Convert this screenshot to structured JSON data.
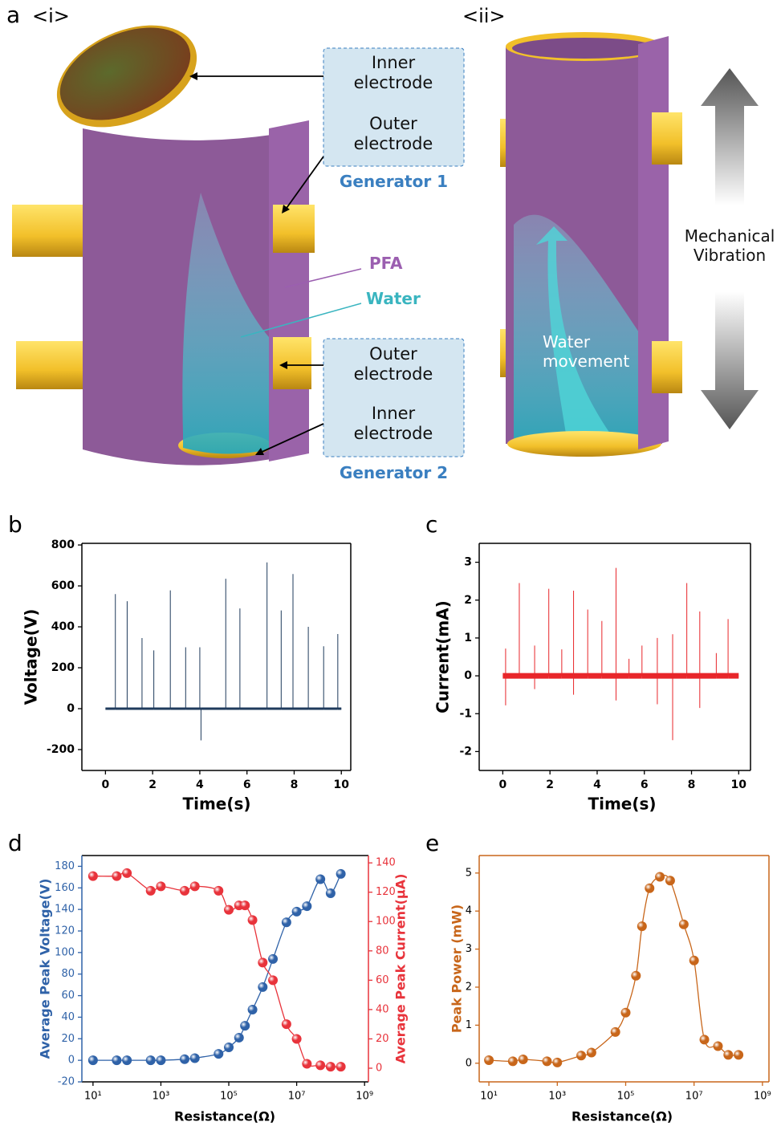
{
  "panel_a": {
    "label": "a",
    "sub_i": "<i>",
    "sub_ii": "<ii>",
    "inner_electrode_1": "Inner electrode",
    "outer_electrode_1": "Outer electrode",
    "generator_1": "Generator 1",
    "pfa": "PFA",
    "water": "Water",
    "outer_electrode_2": "Outer electrode",
    "inner_electrode_2": "Inner electrode",
    "generator_2": "Generator 2",
    "vibration": "Mechanical Vibration",
    "movement": "Water movement"
  },
  "chart_data": [
    {
      "panel": "b",
      "type": "line",
      "xlabel": "Time(s)",
      "ylabel": "Voltage(V)",
      "xlim": [
        -1,
        10.4
      ],
      "xticks": [
        0,
        2,
        4,
        6,
        8,
        10
      ],
      "ylim": [
        -302,
        808
      ],
      "yticks": [
        -200,
        0,
        200,
        400,
        600,
        800
      ],
      "x": [
        0,
        0.42,
        0.42,
        0.42,
        0.92,
        0.92,
        0.92,
        1.55,
        1.55,
        1.55,
        2.05,
        2.05,
        2.05,
        2.75,
        2.75,
        2.75,
        3.4,
        3.4,
        3.4,
        4.0,
        4.0,
        4.0,
        4.05,
        4.05,
        4.05,
        5.1,
        5.1,
        5.1,
        5.7,
        5.7,
        5.7,
        6.85,
        6.85,
        6.85,
        7.45,
        7.45,
        7.45,
        7.95,
        7.95,
        7.95,
        8.6,
        8.6,
        8.6,
        9.25,
        9.25,
        9.25,
        9.85,
        9.85,
        9.85,
        10
      ],
      "series": [
        {
          "color": "#1f3b5c",
          "values": [
            0,
            0,
            560,
            0,
            0,
            525,
            0,
            0,
            345,
            0,
            0,
            285,
            0,
            0,
            578,
            0,
            0,
            300,
            0,
            0,
            300,
            0,
            0,
            -155,
            0,
            0,
            635,
            0,
            0,
            490,
            0,
            0,
            715,
            0,
            0,
            480,
            0,
            0,
            658,
            0,
            0,
            400,
            0,
            0,
            305,
            0,
            0,
            365,
            0,
            0
          ]
        }
      ]
    },
    {
      "panel": "c",
      "type": "line",
      "xlabel": "Time(s)",
      "ylabel": "Current(mA)",
      "xlim": [
        -1,
        10.5
      ],
      "xticks": [
        0,
        2,
        4,
        6,
        8,
        10
      ],
      "ylim": [
        -2.5,
        3.5
      ],
      "yticks": [
        -2,
        -1,
        0,
        1,
        2,
        3
      ],
      "x": [
        0,
        0.12,
        0.12,
        0.12,
        0.12,
        0.7,
        0.7,
        0.7,
        1.35,
        1.35,
        1.35,
        1.35,
        1.95,
        1.95,
        1.95,
        2.5,
        2.5,
        2.5,
        3.0,
        3.0,
        3.0,
        3.0,
        3.6,
        3.6,
        3.6,
        4.2,
        4.2,
        4.2,
        4.8,
        4.8,
        4.8,
        4.8,
        5.35,
        5.35,
        5.35,
        5.9,
        5.9,
        5.9,
        6.55,
        6.55,
        6.55,
        6.55,
        7.2,
        7.2,
        7.2,
        7.2,
        7.8,
        7.8,
        7.8,
        8.35,
        8.35,
        8.35,
        8.35,
        9.05,
        9.05,
        9.05,
        9.55,
        9.55,
        9.55,
        10
      ],
      "series": [
        {
          "color": "#e8262a",
          "values": [
            0,
            0,
            0.72,
            -0.78,
            0,
            0,
            2.45,
            0,
            0,
            0.8,
            -0.35,
            0,
            0,
            2.3,
            0,
            0,
            0.7,
            0,
            0,
            2.25,
            -0.5,
            0,
            0,
            1.75,
            0,
            0,
            1.45,
            0,
            0,
            2.85,
            -0.65,
            0,
            0,
            0.45,
            0,
            0,
            0.8,
            0,
            0,
            1.0,
            -0.75,
            0,
            0,
            1.1,
            -1.7,
            0,
            0,
            2.45,
            0,
            0,
            1.7,
            -0.85,
            0,
            0,
            0.6,
            0,
            0,
            1.5,
            0,
            0
          ]
        }
      ]
    },
    {
      "panel": "d",
      "type": "line",
      "markers": true,
      "xscale": "log",
      "xlabel": "Resistance(Ω)",
      "ylabel": "Average Peak Voltage(V)",
      "y2label": "Average Peak Current(μA)",
      "xlim": [
        4.7,
        1300000000
      ],
      "xticks": [
        {
          "value": 10,
          "label": "10¹"
        },
        {
          "value": 1000,
          "label": "10³"
        },
        {
          "value": 100000,
          "label": "10⁵"
        },
        {
          "value": 10000000,
          "label": "10⁷"
        },
        {
          "value": 1000000000,
          "label": "10⁹"
        }
      ],
      "ylim": [
        -20,
        190
      ],
      "yticks": [
        -20,
        0,
        20,
        40,
        60,
        80,
        100,
        120,
        140,
        160,
        180
      ],
      "y2lim": [
        -9.3,
        145
      ],
      "y2ticks": [
        0,
        20,
        40,
        60,
        80,
        100,
        120,
        140
      ],
      "x": [
        10,
        50,
        100,
        500,
        1000,
        5000,
        10000,
        50000,
        100000,
        200000,
        300000,
        500000,
        1000000,
        2000000,
        5000000,
        10000000,
        20000000,
        50000000,
        100000000,
        200000000
      ],
      "series": [
        {
          "color": "#2f62a8",
          "values": [
            0,
            0,
            0,
            0,
            0,
            1,
            2,
            6,
            12,
            21,
            32,
            47,
            68,
            94,
            128,
            138,
            143,
            168,
            155,
            173
          ]
        },
        {
          "color": "#e8333b",
          "axis": "y2",
          "values": [
            131,
            131,
            133,
            121,
            124,
            121,
            124,
            121,
            108,
            111,
            111,
            101,
            72,
            60,
            30,
            20,
            3,
            2,
            1,
            1
          ]
        }
      ]
    },
    {
      "panel": "e",
      "type": "line",
      "markers": true,
      "xscale": "log",
      "axis_color": "#c8661a",
      "xlabel": "Resistance(Ω)",
      "ylabel": "Peak Power (mW)",
      "xlim": [
        5.2,
        1550000000
      ],
      "xticks": [
        {
          "value": 10,
          "label": "10¹"
        },
        {
          "value": 1000,
          "label": "10³"
        },
        {
          "value": 100000,
          "label": "10⁵"
        },
        {
          "value": 10000000,
          "label": "10⁷"
        },
        {
          "value": 1000000000,
          "label": "10⁹"
        }
      ],
      "ylim": [
        -0.49,
        5.46
      ],
      "yticks": [
        0,
        1,
        2,
        3,
        4,
        5
      ],
      "x": [
        10,
        50,
        100,
        500,
        1000,
        5000,
        10000,
        50000,
        100000,
        200000,
        300000,
        500000,
        1000000,
        2000000,
        5000000,
        10000000,
        20000000,
        50000000,
        100000000,
        200000000
      ],
      "series": [
        {
          "color": "#c8661a",
          "values": [
            0.08,
            0.05,
            0.1,
            0.05,
            0.02,
            0.2,
            0.28,
            0.82,
            1.33,
            2.3,
            3.6,
            4.6,
            4.9,
            4.8,
            3.65,
            2.7,
            0.62,
            0.45,
            0.22,
            0.22
          ]
        }
      ]
    }
  ]
}
